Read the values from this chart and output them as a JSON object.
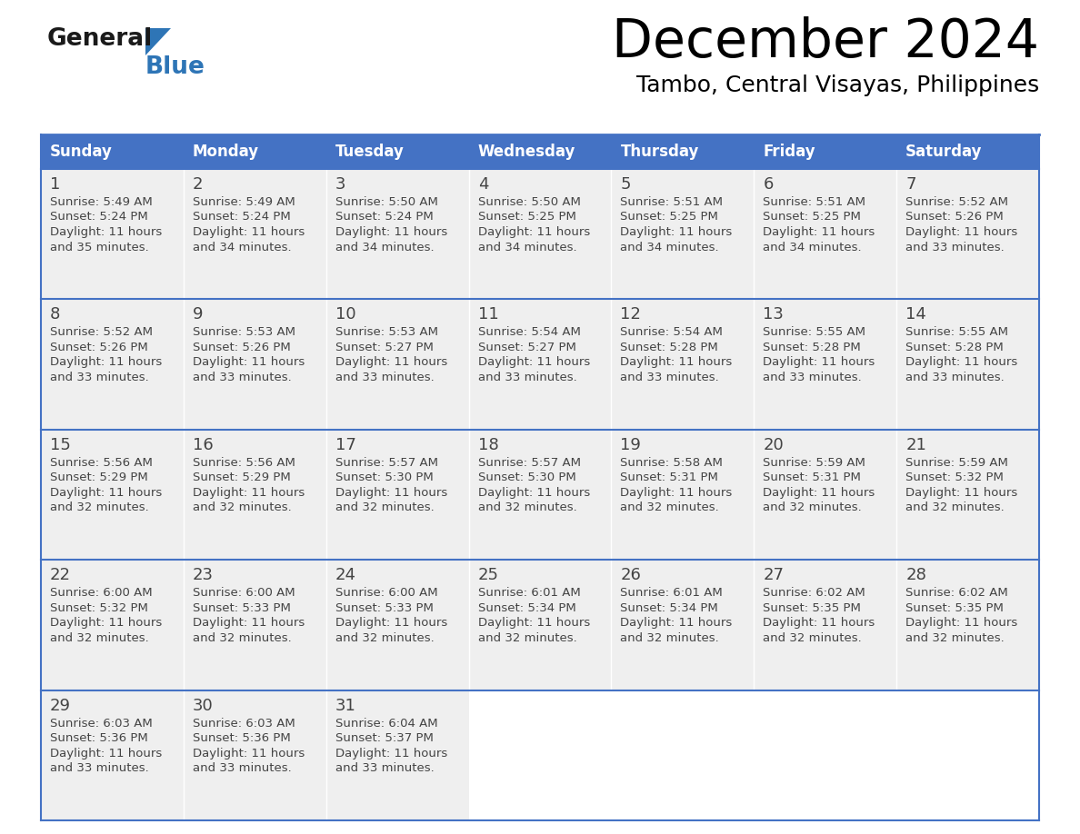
{
  "title": "December 2024",
  "subtitle": "Tambo, Central Visayas, Philippines",
  "header_bg": "#4472C4",
  "header_text_color": "#FFFFFF",
  "cell_bg": "#EFEFEF",
  "day_headers": [
    "Sunday",
    "Monday",
    "Tuesday",
    "Wednesday",
    "Thursday",
    "Friday",
    "Saturday"
  ],
  "days": [
    {
      "day": 1,
      "col": 0,
      "row": 0,
      "sunrise": "5:49 AM",
      "sunset": "5:24 PM",
      "daylight_min": "35"
    },
    {
      "day": 2,
      "col": 1,
      "row": 0,
      "sunrise": "5:49 AM",
      "sunset": "5:24 PM",
      "daylight_min": "34"
    },
    {
      "day": 3,
      "col": 2,
      "row": 0,
      "sunrise": "5:50 AM",
      "sunset": "5:24 PM",
      "daylight_min": "34"
    },
    {
      "day": 4,
      "col": 3,
      "row": 0,
      "sunrise": "5:50 AM",
      "sunset": "5:25 PM",
      "daylight_min": "34"
    },
    {
      "day": 5,
      "col": 4,
      "row": 0,
      "sunrise": "5:51 AM",
      "sunset": "5:25 PM",
      "daylight_min": "34"
    },
    {
      "day": 6,
      "col": 5,
      "row": 0,
      "sunrise": "5:51 AM",
      "sunset": "5:25 PM",
      "daylight_min": "34"
    },
    {
      "day": 7,
      "col": 6,
      "row": 0,
      "sunrise": "5:52 AM",
      "sunset": "5:26 PM",
      "daylight_min": "33"
    },
    {
      "day": 8,
      "col": 0,
      "row": 1,
      "sunrise": "5:52 AM",
      "sunset": "5:26 PM",
      "daylight_min": "33"
    },
    {
      "day": 9,
      "col": 1,
      "row": 1,
      "sunrise": "5:53 AM",
      "sunset": "5:26 PM",
      "daylight_min": "33"
    },
    {
      "day": 10,
      "col": 2,
      "row": 1,
      "sunrise": "5:53 AM",
      "sunset": "5:27 PM",
      "daylight_min": "33"
    },
    {
      "day": 11,
      "col": 3,
      "row": 1,
      "sunrise": "5:54 AM",
      "sunset": "5:27 PM",
      "daylight_min": "33"
    },
    {
      "day": 12,
      "col": 4,
      "row": 1,
      "sunrise": "5:54 AM",
      "sunset": "5:28 PM",
      "daylight_min": "33"
    },
    {
      "day": 13,
      "col": 5,
      "row": 1,
      "sunrise": "5:55 AM",
      "sunset": "5:28 PM",
      "daylight_min": "33"
    },
    {
      "day": 14,
      "col": 6,
      "row": 1,
      "sunrise": "5:55 AM",
      "sunset": "5:28 PM",
      "daylight_min": "33"
    },
    {
      "day": 15,
      "col": 0,
      "row": 2,
      "sunrise": "5:56 AM",
      "sunset": "5:29 PM",
      "daylight_min": "32"
    },
    {
      "day": 16,
      "col": 1,
      "row": 2,
      "sunrise": "5:56 AM",
      "sunset": "5:29 PM",
      "daylight_min": "32"
    },
    {
      "day": 17,
      "col": 2,
      "row": 2,
      "sunrise": "5:57 AM",
      "sunset": "5:30 PM",
      "daylight_min": "32"
    },
    {
      "day": 18,
      "col": 3,
      "row": 2,
      "sunrise": "5:57 AM",
      "sunset": "5:30 PM",
      "daylight_min": "32"
    },
    {
      "day": 19,
      "col": 4,
      "row": 2,
      "sunrise": "5:58 AM",
      "sunset": "5:31 PM",
      "daylight_min": "32"
    },
    {
      "day": 20,
      "col": 5,
      "row": 2,
      "sunrise": "5:59 AM",
      "sunset": "5:31 PM",
      "daylight_min": "32"
    },
    {
      "day": 21,
      "col": 6,
      "row": 2,
      "sunrise": "5:59 AM",
      "sunset": "5:32 PM",
      "daylight_min": "32"
    },
    {
      "day": 22,
      "col": 0,
      "row": 3,
      "sunrise": "6:00 AM",
      "sunset": "5:32 PM",
      "daylight_min": "32"
    },
    {
      "day": 23,
      "col": 1,
      "row": 3,
      "sunrise": "6:00 AM",
      "sunset": "5:33 PM",
      "daylight_min": "32"
    },
    {
      "day": 24,
      "col": 2,
      "row": 3,
      "sunrise": "6:00 AM",
      "sunset": "5:33 PM",
      "daylight_min": "32"
    },
    {
      "day": 25,
      "col": 3,
      "row": 3,
      "sunrise": "6:01 AM",
      "sunset": "5:34 PM",
      "daylight_min": "32"
    },
    {
      "day": 26,
      "col": 4,
      "row": 3,
      "sunrise": "6:01 AM",
      "sunset": "5:34 PM",
      "daylight_min": "32"
    },
    {
      "day": 27,
      "col": 5,
      "row": 3,
      "sunrise": "6:02 AM",
      "sunset": "5:35 PM",
      "daylight_min": "32"
    },
    {
      "day": 28,
      "col": 6,
      "row": 3,
      "sunrise": "6:02 AM",
      "sunset": "5:35 PM",
      "daylight_min": "32"
    },
    {
      "day": 29,
      "col": 0,
      "row": 4,
      "sunrise": "6:03 AM",
      "sunset": "5:36 PM",
      "daylight_min": "33"
    },
    {
      "day": 30,
      "col": 1,
      "row": 4,
      "sunrise": "6:03 AM",
      "sunset": "5:36 PM",
      "daylight_min": "33"
    },
    {
      "day": 31,
      "col": 2,
      "row": 4,
      "sunrise": "6:04 AM",
      "sunset": "5:37 PM",
      "daylight_min": "33"
    }
  ],
  "logo_general_color": "#1a1a1a",
  "logo_blue_color": "#2E75B6",
  "line_color": "#4472C4",
  "text_color_dark": "#444444",
  "num_rows": 5,
  "num_cols": 7,
  "fig_width": 11.88,
  "fig_height": 9.18,
  "dpi": 100
}
